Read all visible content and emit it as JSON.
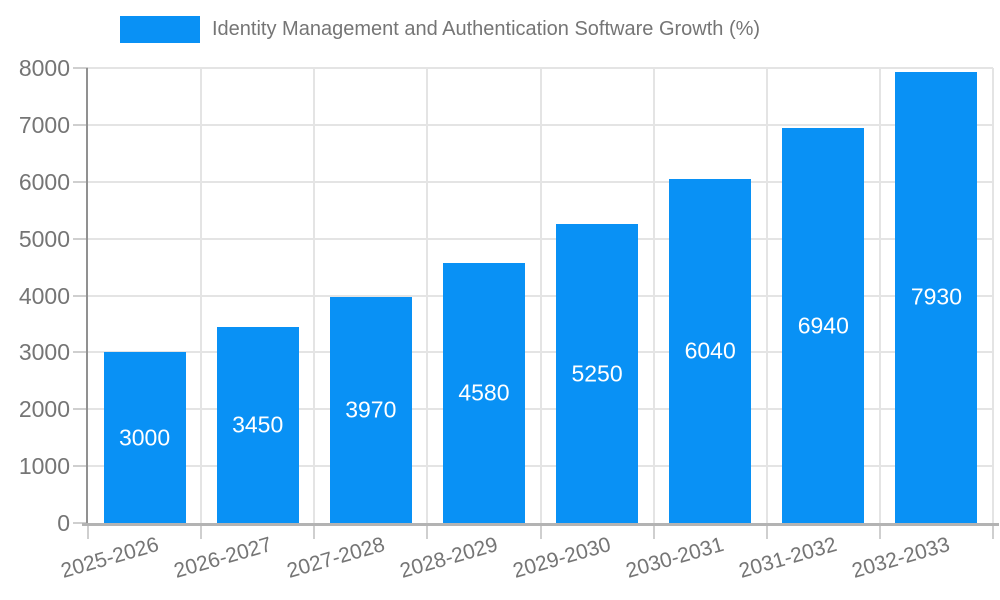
{
  "legend": {
    "label": "Identity Management and Authentication Software Growth (%)",
    "swatch_color": "#0991f5"
  },
  "chart_data": {
    "type": "bar",
    "title": "Identity Management and Authentication Software Growth (%)",
    "categories": [
      "2025-2026",
      "2026-2027",
      "2027-2028",
      "2028-2029",
      "2029-2030",
      "2030-2031",
      "2031-2032",
      "2032-2033"
    ],
    "series": [
      {
        "name": "Identity Management and Authentication Software Growth (%)",
        "values": [
          3000,
          3450,
          3970,
          4580,
          5250,
          6040,
          6940,
          7930
        ]
      }
    ],
    "value_labels": [
      "3000",
      "3450",
      "3970",
      "4580",
      "5250",
      "6040",
      "6940",
      "7930"
    ],
    "xlabel": "",
    "ylabel": "",
    "ylim": [
      0,
      8000
    ],
    "ytick_step": 1000,
    "ytick_labels": [
      "0",
      "1000",
      "2000",
      "3000",
      "4000",
      "5000",
      "6000",
      "7000",
      "8000"
    ],
    "grid": true,
    "legend_position": "top",
    "colors": {
      "bar": "#0991f5",
      "grid": "#e4e4e4",
      "tick": "#cfcfcf",
      "y_axis": "#919191",
      "x_axis": "#b3b3b3",
      "axis_text": "#757575",
      "value_text": "#ffffff",
      "background": "#ffffff"
    }
  }
}
